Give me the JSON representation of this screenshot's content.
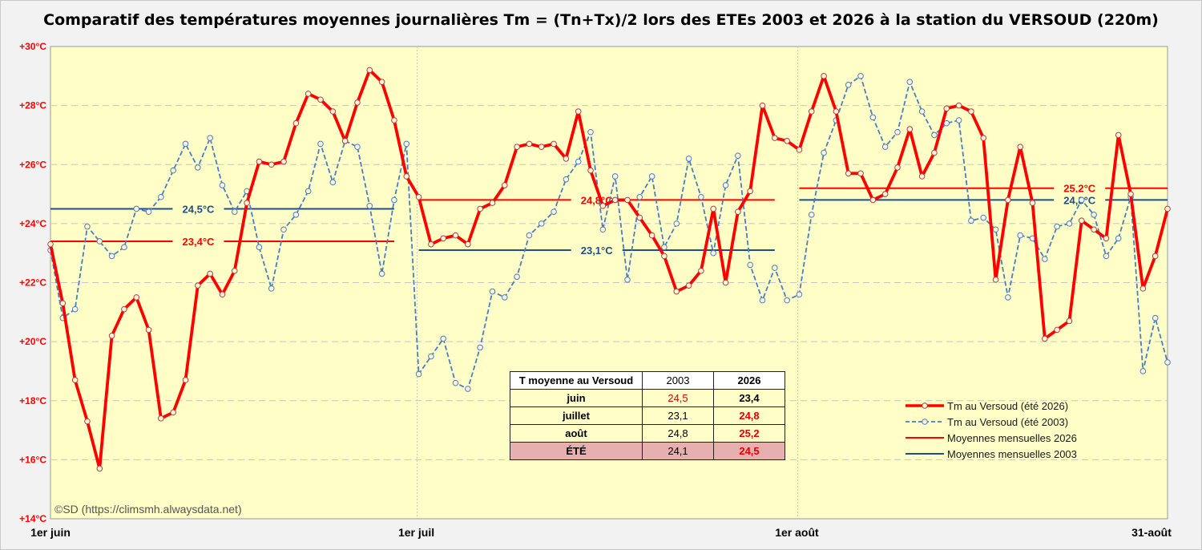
{
  "title": "Comparatif des températures moyennes journalières Tm = (Tn+Tx)/2 lors des ETEs 2003 et 2026 à la station du VERSOUD (220m)",
  "copyright": "©SD (https://climsmh.alwaysdata.net)",
  "colors": {
    "plot_bg": "#fffec6",
    "series_2026": "#ff0000",
    "series_2003": "#4a7ec4",
    "mean_2026": "#ff0000",
    "mean_2003": "#1f4e8a",
    "marker_fill": "#fff3d8",
    "y_tick_text": "#ff0000"
  },
  "chart_data": {
    "type": "line",
    "x_unit": "day",
    "x_tick_labels": [
      "1er juin",
      "1er juil",
      "1er août",
      "31-août"
    ],
    "y_range": [
      14,
      30
    ],
    "y_tick_values": [
      14,
      16,
      18,
      20,
      22,
      24,
      26,
      28,
      30
    ],
    "y_tick_labels": [
      "+14°C",
      "+16°C",
      "+18°C",
      "+20°C",
      "+22°C",
      "+24°C",
      "+26°C",
      "+28°C",
      "+30°C"
    ],
    "grid": "horizontal dashed",
    "series": [
      {
        "name": "Tm au Versoud (été 2026)",
        "style": "solid-thick",
        "values": [
          23.3,
          21.3,
          18.7,
          17.3,
          15.7,
          20.2,
          21.1,
          21.5,
          20.4,
          17.4,
          17.6,
          18.7,
          21.9,
          22.3,
          21.6,
          22.4,
          24.7,
          26.1,
          26.0,
          26.1,
          27.4,
          28.4,
          28.2,
          27.8,
          26.8,
          28.1,
          29.2,
          28.8,
          27.5,
          25.6,
          24.9,
          23.3,
          23.5,
          23.6,
          23.3,
          24.5,
          24.7,
          25.3,
          26.6,
          26.7,
          26.6,
          26.7,
          26.2,
          27.8,
          25.8,
          24.6,
          24.8,
          24.8,
          24.2,
          23.6,
          22.9,
          21.7,
          21.9,
          22.4,
          24.5,
          22.0,
          24.4,
          25.1,
          28.0,
          26.9,
          26.8,
          26.5,
          27.8,
          29.0,
          27.8,
          25.7,
          25.7,
          24.8,
          25.0,
          25.9,
          27.2,
          25.6,
          26.4,
          27.9,
          28.0,
          27.8,
          26.9,
          22.1,
          24.8,
          26.6,
          24.7,
          20.1,
          20.4,
          20.7,
          24.1,
          23.8,
          23.5,
          27.0,
          25.0,
          21.8,
          22.9,
          24.5
        ]
      },
      {
        "name": "Tm au Versoud (été 2003)",
        "style": "dashed",
        "values": [
          23.1,
          20.8,
          21.1,
          23.9,
          23.4,
          22.9,
          23.2,
          24.5,
          24.4,
          24.9,
          25.8,
          26.7,
          25.9,
          26.9,
          25.3,
          24.4,
          25.1,
          23.2,
          21.8,
          23.8,
          24.3,
          25.1,
          26.7,
          25.4,
          26.8,
          26.6,
          24.6,
          22.3,
          24.8,
          26.7,
          18.9,
          19.5,
          20.1,
          18.6,
          18.4,
          19.8,
          21.7,
          21.5,
          22.2,
          23.6,
          24.0,
          24.4,
          25.5,
          26.1,
          27.1,
          23.8,
          25.6,
          22.1,
          24.9,
          25.6,
          23.2,
          24.0,
          26.2,
          24.9,
          23.0,
          25.3,
          26.3,
          22.6,
          21.4,
          22.5,
          21.4,
          21.6,
          24.3,
          26.4,
          27.5,
          28.7,
          29.0,
          27.6,
          26.6,
          27.1,
          28.8,
          27.8,
          27.0,
          27.4,
          27.5,
          24.1,
          24.2,
          23.8,
          21.5,
          23.6,
          23.5,
          22.8,
          23.9,
          24.0,
          24.8,
          24.3,
          22.9,
          23.5,
          24.9,
          19.0,
          20.8,
          19.3
        ]
      }
    ],
    "monthly_means": [
      {
        "year": "2026",
        "month": "juin",
        "value": 23.4,
        "label": "23,4°C",
        "start_day": 0,
        "end_day": 28
      },
      {
        "year": "2003",
        "month": "juin",
        "value": 24.5,
        "label": "24,5°C",
        "start_day": 0,
        "end_day": 28
      },
      {
        "year": "2026",
        "month": "juillet",
        "value": 24.8,
        "label": "24,8°C",
        "start_day": 30,
        "end_day": 59
      },
      {
        "year": "2003",
        "month": "juillet",
        "value": 23.1,
        "label": "23,1°C",
        "start_day": 30,
        "end_day": 59
      },
      {
        "year": "2026",
        "month": "août",
        "value": 25.2,
        "label": "25,2°C",
        "start_day": 61,
        "end_day": 91
      },
      {
        "year": "2003",
        "month": "août",
        "value": 24.8,
        "label": "24,8°C",
        "start_day": 61,
        "end_day": 91
      }
    ],
    "legend": {
      "position": "lower-right",
      "entries": [
        {
          "label": "Tm au Versoud (été 2026)",
          "kind": "solid-thick-markers",
          "color": "#ff0000"
        },
        {
          "label": "Tm au Versoud (été 2003)",
          "kind": "dashed-markers",
          "color": "#4a7ec4"
        },
        {
          "label": "Moyennes mensuelles 2026",
          "kind": "solid",
          "color": "#ff0000"
        },
        {
          "label": "Moyennes mensuelles 2003",
          "kind": "solid",
          "color": "#1f4e8a"
        }
      ]
    },
    "table": {
      "header": [
        "T moyenne au Versoud",
        "2003",
        "2026"
      ],
      "rows": [
        {
          "label": "juin",
          "v2003": "24,5",
          "v2026": "23,4",
          "red": "2003"
        },
        {
          "label": "juillet",
          "v2003": "23,1",
          "v2026": "24,8",
          "red": "2026"
        },
        {
          "label": "août",
          "v2003": "24,8",
          "v2026": "25,2",
          "red": "2026"
        },
        {
          "label": "ÉTÉ",
          "v2003": "24,1",
          "v2026": "24,5",
          "red": "2026"
        }
      ]
    }
  }
}
